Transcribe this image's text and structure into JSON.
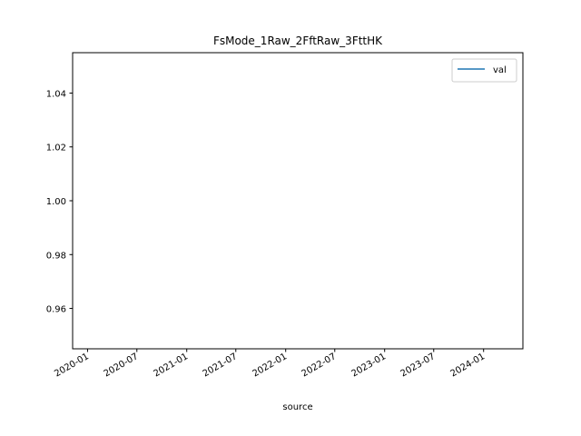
{
  "chart_data": {
    "type": "line",
    "title": "FsMode_1Raw_2FftRaw_3FttHK",
    "xlabel": "source",
    "ylabel": "",
    "x_axis": {
      "kind": "date",
      "range": [
        "2019-11-07",
        "2024-05-25"
      ],
      "ticks": [
        "2020-01",
        "2020-07",
        "2021-01",
        "2021-07",
        "2022-01",
        "2022-07",
        "2023-01",
        "2023-07",
        "2024-01"
      ],
      "tick_dates": [
        "2020-01-01",
        "2020-07-01",
        "2021-01-01",
        "2021-07-01",
        "2022-01-01",
        "2022-07-01",
        "2023-01-01",
        "2023-07-01",
        "2024-01-01"
      ]
    },
    "y_axis": {
      "range": [
        0.945,
        1.055
      ],
      "ticks": [
        "0.96",
        "0.98",
        "1.00",
        "1.02",
        "1.04"
      ],
      "tick_values": [
        0.96,
        0.98,
        1.0,
        1.02,
        1.04
      ]
    },
    "series": [
      {
        "name": "val",
        "color": "#1f77b4",
        "x": [],
        "y": []
      }
    ],
    "grid": false,
    "legend": {
      "placement": "top-right",
      "entries": [
        "val"
      ]
    }
  }
}
